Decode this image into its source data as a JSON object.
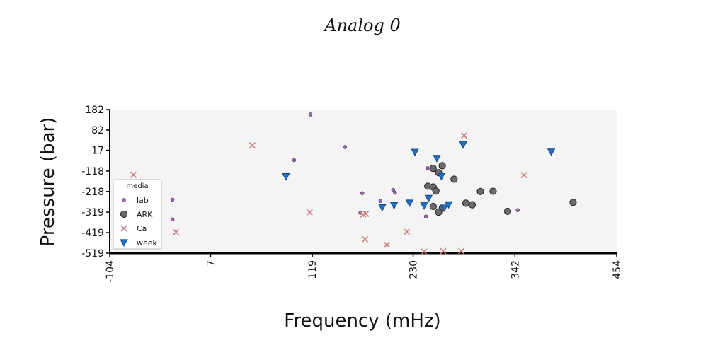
{
  "chart_data": {
    "type": "scatter",
    "title": "Analog 0",
    "xlabel": "Frequency (mHz)",
    "ylabel": "Pressure (bar)",
    "xlim": [
      -104,
      454
    ],
    "ylim": [
      -519,
      182
    ],
    "xticks": [
      "-104",
      "7",
      "119",
      "230",
      "342",
      "454"
    ],
    "yticks": [
      "182",
      "82",
      "-17",
      "-118",
      "-218",
      "-319",
      "-419",
      "-519"
    ],
    "legend": {
      "title": "media",
      "placement": "lower-left"
    },
    "series": [
      {
        "name": "lab",
        "marker": "circle-small",
        "color": "#9b6cb0",
        "points": [
          [
            -35,
            -258
          ],
          [
            -35,
            -354
          ],
          [
            99,
            -65
          ],
          [
            117,
            158
          ],
          [
            155,
            -1
          ],
          [
            174,
            -226
          ],
          [
            172,
            -322
          ],
          [
            194,
            -264
          ],
          [
            208,
            -211
          ],
          [
            210,
            -224
          ],
          [
            244,
            -340
          ],
          [
            246,
            -104
          ],
          [
            345,
            -309
          ]
        ]
      },
      {
        "name": "ARK",
        "marker": "circle",
        "color": "#6b6b6b",
        "points": [
          [
            252,
            -105
          ],
          [
            246,
            -192
          ],
          [
            252,
            -196
          ],
          [
            255,
            -216
          ],
          [
            258,
            -126
          ],
          [
            262,
            -92
          ],
          [
            262,
            -300
          ],
          [
            258,
            -319
          ],
          [
            252,
            -291
          ],
          [
            288,
            -275
          ],
          [
            295,
            -283
          ],
          [
            304,
            -218
          ],
          [
            318,
            -217
          ],
          [
            334,
            -315
          ],
          [
            406,
            -271
          ],
          [
            275,
            -158
          ]
        ]
      },
      {
        "name": "Ca",
        "marker": "x",
        "color": "#c98080",
        "points": [
          [
            -78,
            -137
          ],
          [
            -31,
            -417
          ],
          [
            53,
            7
          ],
          [
            116,
            -320
          ],
          [
            175,
            -330
          ],
          [
            178,
            -327
          ],
          [
            177,
            -451
          ],
          [
            201,
            -478
          ],
          [
            223,
            -415
          ],
          [
            242,
            -512
          ],
          [
            263,
            -509
          ],
          [
            283,
            -509
          ],
          [
            286,
            55
          ],
          [
            352,
            -138
          ]
        ]
      },
      {
        "name": "week",
        "marker": "triangle-down",
        "color": "#1f6fc8",
        "points": [
          [
            90,
            -145
          ],
          [
            196,
            -296
          ],
          [
            209,
            -286
          ],
          [
            226,
            -274
          ],
          [
            232,
            -26
          ],
          [
            242,
            -287
          ],
          [
            247,
            -251
          ],
          [
            256,
            -56
          ],
          [
            261,
            -144
          ],
          [
            264,
            -298
          ],
          [
            269,
            -282
          ],
          [
            285,
            10
          ],
          [
            382,
            -25
          ]
        ]
      }
    ]
  }
}
